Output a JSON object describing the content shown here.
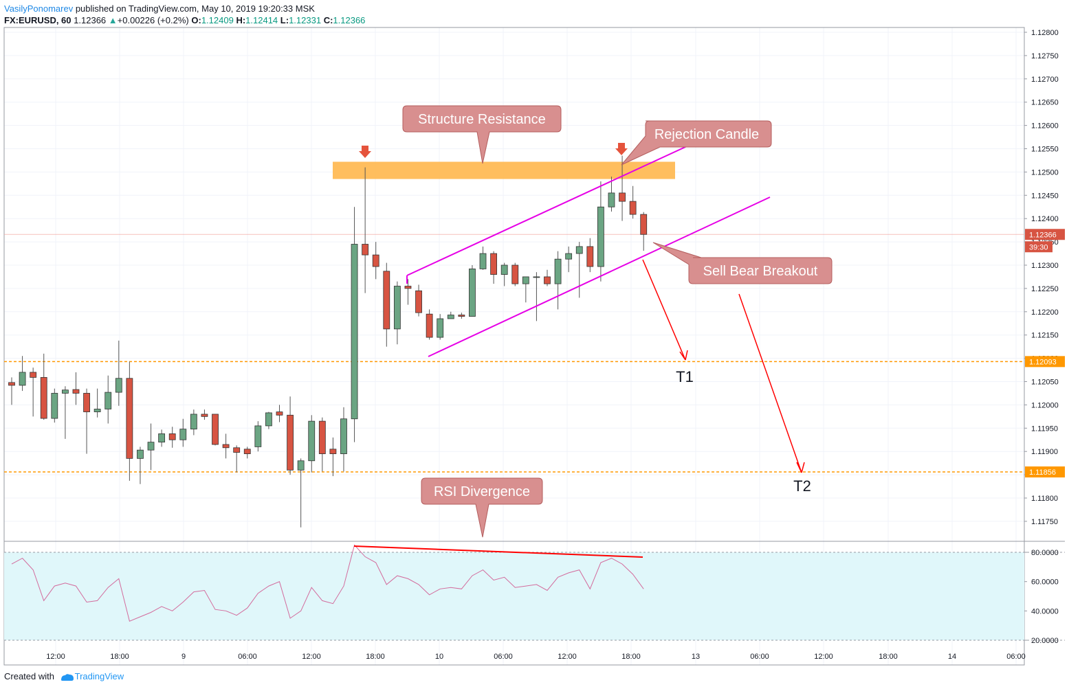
{
  "header": {
    "author": "VasilyPonomarev",
    "published": "published on TradingView.com, May 10, 2019 19:20:33 MSK",
    "symbol": "FX:EURUSD, 60",
    "last": "1.12366",
    "change_arrow": "▲",
    "change": "+0.00226 (+0.2%)",
    "o_label": "O:",
    "o_value": "1.12409",
    "h_label": "H:",
    "h_value": "1.12414",
    "l_label": "L:",
    "l_value": "1.12331",
    "c_label": "C:",
    "c_value": "1.12366"
  },
  "footer": {
    "created_with": "Created with",
    "brand": "TradingView"
  },
  "colors": {
    "up": "#6ba583",
    "down": "#d75442",
    "channel": "#e600e6",
    "target_arrow": "#ff0000",
    "resistance_zone": "#ffb74d",
    "callout": "#d88f8f",
    "level_line": "#ff9800",
    "rsi_band": "#e0f7fa"
  },
  "chart_data": [
    {
      "type": "candlestick",
      "symbol": "FX:EURUSD",
      "interval": "60",
      "x_tick_labels": [
        "12:00",
        "18:00",
        "9",
        "06:00",
        "12:00",
        "18:00",
        "10",
        "06:00",
        "12:00",
        "18:00",
        "13",
        "06:00",
        "12:00",
        "18:00",
        "14",
        "06:00"
      ],
      "y_tick_labels": [
        "1.12800",
        "1.12750",
        "1.12700",
        "1.12650",
        "1.12600",
        "1.12550",
        "1.12500",
        "1.12450",
        "1.12400",
        "1.12350",
        "1.12300",
        "1.12250",
        "1.12200",
        "1.12150",
        "1.12100",
        "1.12050",
        "1.12000",
        "1.11950",
        "1.11900",
        "1.11850",
        "1.11800",
        "1.11750"
      ],
      "ylim": [
        1.1172,
        1.1281
      ],
      "grid": true,
      "candles": [
        {
          "o": 1.12048,
          "h": 1.12059,
          "l": 1.12,
          "c": 1.12042
        },
        {
          "o": 1.12042,
          "h": 1.12105,
          "l": 1.1203,
          "c": 1.1207
        },
        {
          "o": 1.1207,
          "h": 1.1208,
          "l": 1.11975,
          "c": 1.12059
        },
        {
          "o": 1.12059,
          "h": 1.1211,
          "l": 1.11968,
          "c": 1.11971
        },
        {
          "o": 1.11971,
          "h": 1.12035,
          "l": 1.11962,
          "c": 1.12025
        },
        {
          "o": 1.12025,
          "h": 1.1204,
          "l": 1.11927,
          "c": 1.12032
        },
        {
          "o": 1.12033,
          "h": 1.1207,
          "l": 1.12,
          "c": 1.12025
        },
        {
          "o": 1.12025,
          "h": 1.12035,
          "l": 1.11895,
          "c": 1.11985
        },
        {
          "o": 1.11985,
          "h": 1.12035,
          "l": 1.11973,
          "c": 1.11991
        },
        {
          "o": 1.11991,
          "h": 1.12063,
          "l": 1.1196,
          "c": 1.12027
        },
        {
          "o": 1.12027,
          "h": 1.12138,
          "l": 1.11998,
          "c": 1.12057
        },
        {
          "o": 1.12057,
          "h": 1.12093,
          "l": 1.11837,
          "c": 1.11885
        },
        {
          "o": 1.11885,
          "h": 1.1191,
          "l": 1.1183,
          "c": 1.11903
        },
        {
          "o": 1.11903,
          "h": 1.1196,
          "l": 1.1186,
          "c": 1.1192
        },
        {
          "o": 1.1192,
          "h": 1.11947,
          "l": 1.1191,
          "c": 1.11938
        },
        {
          "o": 1.11938,
          "h": 1.11953,
          "l": 1.11908,
          "c": 1.11925
        },
        {
          "o": 1.11925,
          "h": 1.1197,
          "l": 1.1191,
          "c": 1.11948
        },
        {
          "o": 1.11948,
          "h": 1.1199,
          "l": 1.11935,
          "c": 1.1198
        },
        {
          "o": 1.1198,
          "h": 1.1199,
          "l": 1.11968,
          "c": 1.11975
        },
        {
          "o": 1.1198,
          "h": 1.1198,
          "l": 1.11913,
          "c": 1.11915
        },
        {
          "o": 1.11915,
          "h": 1.11938,
          "l": 1.11885,
          "c": 1.11908
        },
        {
          "o": 1.11908,
          "h": 1.11913,
          "l": 1.11855,
          "c": 1.11898
        },
        {
          "o": 1.11905,
          "h": 1.1191,
          "l": 1.11885,
          "c": 1.11895
        },
        {
          "o": 1.1191,
          "h": 1.11965,
          "l": 1.119,
          "c": 1.11955
        },
        {
          "o": 1.11955,
          "h": 1.11985,
          "l": 1.11948,
          "c": 1.11983
        },
        {
          "o": 1.11985,
          "h": 1.12,
          "l": 1.11963,
          "c": 1.11978
        },
        {
          "o": 1.11978,
          "h": 1.12018,
          "l": 1.1185,
          "c": 1.1186
        },
        {
          "o": 1.1186,
          "h": 1.11885,
          "l": 1.11737,
          "c": 1.1188
        },
        {
          "o": 1.1188,
          "h": 1.11978,
          "l": 1.11855,
          "c": 1.11965
        },
        {
          "o": 1.11965,
          "h": 1.11973,
          "l": 1.11857,
          "c": 1.11895
        },
        {
          "o": 1.11905,
          "h": 1.1193,
          "l": 1.11847,
          "c": 1.11895
        },
        {
          "o": 1.11895,
          "h": 1.11995,
          "l": 1.11857,
          "c": 1.1197
        },
        {
          "o": 1.1197,
          "h": 1.12425,
          "l": 1.1192,
          "c": 1.12345
        },
        {
          "o": 1.12345,
          "h": 1.1251,
          "l": 1.1224,
          "c": 1.12322
        },
        {
          "o": 1.12322,
          "h": 1.1235,
          "l": 1.1227,
          "c": 1.12297
        },
        {
          "o": 1.12287,
          "h": 1.12305,
          "l": 1.12125,
          "c": 1.12163
        },
        {
          "o": 1.12163,
          "h": 1.12265,
          "l": 1.1213,
          "c": 1.12255
        },
        {
          "o": 1.12255,
          "h": 1.1227,
          "l": 1.12215,
          "c": 1.1225
        },
        {
          "o": 1.12245,
          "h": 1.12258,
          "l": 1.1219,
          "c": 1.12198
        },
        {
          "o": 1.12195,
          "h": 1.12205,
          "l": 1.1214,
          "c": 1.12145
        },
        {
          "o": 1.12145,
          "h": 1.12195,
          "l": 1.1214,
          "c": 1.12185
        },
        {
          "o": 1.12185,
          "h": 1.122,
          "l": 1.12185,
          "c": 1.12193
        },
        {
          "o": 1.12193,
          "h": 1.12198,
          "l": 1.12185,
          "c": 1.1219
        },
        {
          "o": 1.1219,
          "h": 1.123,
          "l": 1.1219,
          "c": 1.12292
        },
        {
          "o": 1.12292,
          "h": 1.1234,
          "l": 1.1229,
          "c": 1.12325
        },
        {
          "o": 1.12325,
          "h": 1.1233,
          "l": 1.1226,
          "c": 1.1228
        },
        {
          "o": 1.1228,
          "h": 1.12305,
          "l": 1.12255,
          "c": 1.123
        },
        {
          "o": 1.123,
          "h": 1.12305,
          "l": 1.12255,
          "c": 1.1226
        },
        {
          "o": 1.1226,
          "h": 1.12275,
          "l": 1.1222,
          "c": 1.12275
        },
        {
          "o": 1.12275,
          "h": 1.12285,
          "l": 1.1218,
          "c": 1.12275
        },
        {
          "o": 1.12275,
          "h": 1.1229,
          "l": 1.12255,
          "c": 1.1226
        },
        {
          "o": 1.1226,
          "h": 1.1233,
          "l": 1.12205,
          "c": 1.12313
        },
        {
          "o": 1.12313,
          "h": 1.1234,
          "l": 1.12285,
          "c": 1.12325
        },
        {
          "o": 1.12325,
          "h": 1.1235,
          "l": 1.1223,
          "c": 1.1234
        },
        {
          "o": 1.1234,
          "h": 1.12358,
          "l": 1.12285,
          "c": 1.12297
        },
        {
          "o": 1.12297,
          "h": 1.1248,
          "l": 1.12265,
          "c": 1.12425
        },
        {
          "o": 1.12425,
          "h": 1.1249,
          "l": 1.12415,
          "c": 1.12455
        },
        {
          "o": 1.12455,
          "h": 1.12535,
          "l": 1.12395,
          "c": 1.12437
        },
        {
          "o": 1.12437,
          "h": 1.1247,
          "l": 1.124,
          "c": 1.12409
        },
        {
          "o": 1.12409,
          "h": 1.12414,
          "l": 1.12331,
          "c": 1.12366
        }
      ],
      "price_labels": [
        {
          "value": "1.12366",
          "color": "#d75442"
        },
        {
          "value": "39:30",
          "color": "#d75442"
        },
        {
          "value": "1.12093",
          "color": "#ff9800"
        },
        {
          "value": "1.11856",
          "color": "#ff9800"
        }
      ],
      "levels": [
        1.12093,
        1.11856
      ],
      "annotations": {
        "resistance_zone": {
          "from": 1.12485,
          "to": 1.12522
        },
        "callouts": [
          "Structure Resistance",
          "Rejection Candle",
          "Sell Bear Breakout",
          "RSI Divergence"
        ],
        "targets": [
          "T1",
          "T2"
        ]
      }
    },
    {
      "type": "line",
      "name": "RSI",
      "y_tick_labels": [
        "80.0000",
        "60.0000",
        "40.0000",
        "20.0000"
      ],
      "ylim": [
        18,
        87
      ],
      "band": [
        20,
        80
      ],
      "values": [
        72,
        76,
        68,
        47,
        57,
        59,
        57,
        46,
        47,
        56,
        62,
        33,
        36,
        39,
        43,
        40,
        46,
        53,
        54,
        41,
        40,
        37,
        42,
        52,
        57,
        60,
        35,
        40,
        56,
        47,
        45,
        57,
        85,
        77,
        73,
        58,
        64,
        62,
        58,
        51,
        55,
        56,
        55,
        64,
        68,
        61,
        63,
        56,
        57,
        58,
        54,
        63,
        66,
        68,
        55,
        73,
        76,
        72,
        65,
        55
      ]
    }
  ]
}
